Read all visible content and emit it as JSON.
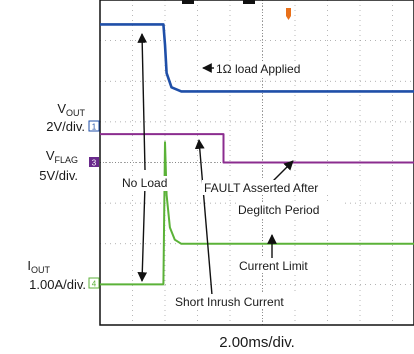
{
  "chart_data": {
    "type": "line",
    "time_base": "2.00ms/div.",
    "channels": [
      {
        "id": "1",
        "name": "V",
        "subscript": "OUT",
        "scale": "2V/div.",
        "color": "#8b2c8f"
      },
      {
        "id": "3",
        "name": "V",
        "subscript": "FLAG",
        "scale": "5V/div.",
        "color": "#6a2a8c"
      },
      {
        "id": "4",
        "name": "I",
        "subscript": "OUT",
        "scale": "1.00A/div.",
        "color": "#5bb238"
      }
    ],
    "series": [
      {
        "name": "V_OUT",
        "x_div": [
          0,
          1.95,
          2.0,
          2.05,
          2.2,
          2.5,
          10
        ],
        "y_div": [
          7.4,
          7.4,
          6.9,
          6.2,
          5.85,
          5.75,
          5.75
        ],
        "color": "#1f4fa8"
      },
      {
        "name": "V_FLAG",
        "x_div": [
          0,
          3.8,
          3.8,
          10
        ],
        "y_div": [
          4.7,
          4.7,
          4.0,
          4.0
        ],
        "color": "#8b2c8f"
      },
      {
        "name": "I_OUT",
        "x_div": [
          0,
          1.95,
          2.0,
          2.05,
          2.15,
          2.3,
          2.5,
          10
        ],
        "y_div": [
          1.0,
          1.0,
          4.5,
          3.2,
          2.4,
          2.1,
          2.0,
          2.0
        ],
        "color": "#5bb238"
      }
    ],
    "annotations": [
      {
        "text": "1Ω load Applied"
      },
      {
        "text": "No Load"
      },
      {
        "text": "FAULT Asserted After"
      },
      {
        "text": "Deglitch Period"
      },
      {
        "text": "Current Limit"
      },
      {
        "text": "Short Inrush Current"
      }
    ]
  }
}
